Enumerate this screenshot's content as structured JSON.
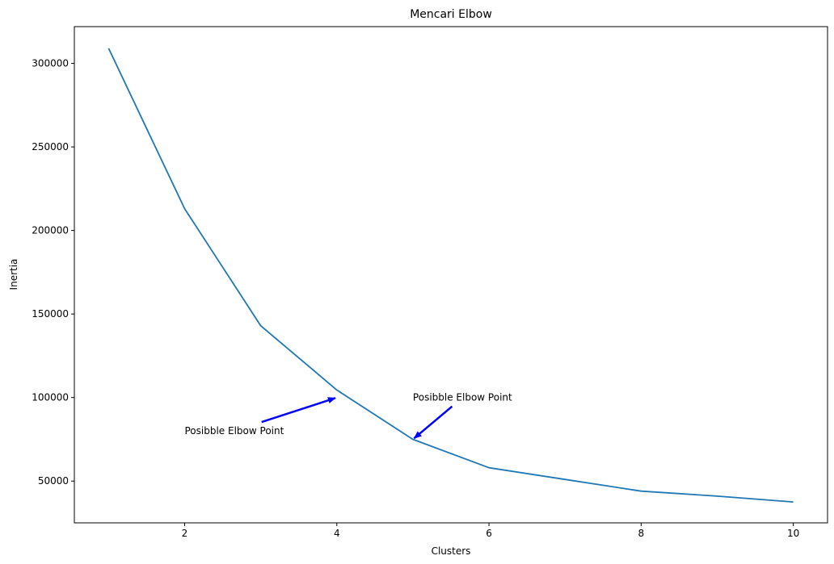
{
  "chart_data": {
    "type": "line",
    "title": "Mencari Elbow",
    "xlabel": "Clusters",
    "ylabel": "Inertia",
    "xlim": [
      0.55,
      10.45
    ],
    "ylim": [
      25000,
      322000
    ],
    "grid": false,
    "xticks": [
      2,
      4,
      6,
      8,
      10
    ],
    "yticks": [
      50000,
      100000,
      150000,
      200000,
      250000,
      300000
    ],
    "series": [
      {
        "color": "#1f77b4",
        "x": [
          1,
          2,
          3,
          4,
          5,
          6,
          7,
          8,
          9,
          10
        ],
        "y": [
          309000,
          213000,
          143000,
          104500,
          75000,
          58000,
          51000,
          44000,
          41000,
          37500
        ]
      }
    ],
    "annotations": [
      {
        "text": "Posibble Elbow Point",
        "xy": [
          4,
          100000
        ],
        "xytext": [
          2,
          80000
        ],
        "arrow_color": "#0000ff"
      },
      {
        "text": "Posibble Elbow Point",
        "xy": [
          5,
          75000
        ],
        "xytext": [
          5,
          100000
        ],
        "arrow_color": "#0000ff"
      }
    ]
  }
}
